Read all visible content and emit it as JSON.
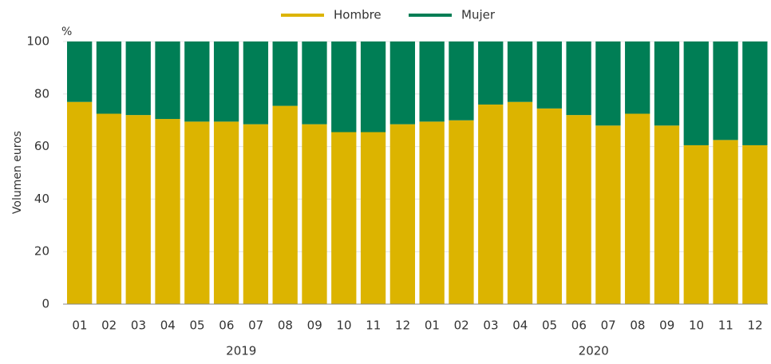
{
  "chart_data": {
    "type": "stacked_bar",
    "y_axis_label": "Volumen euros",
    "y_unit": "%",
    "categories": [
      "01",
      "02",
      "03",
      "04",
      "05",
      "06",
      "07",
      "08",
      "09",
      "10",
      "11",
      "12",
      "01",
      "02",
      "03",
      "04",
      "05",
      "06",
      "07",
      "08",
      "09",
      "10",
      "11",
      "12"
    ],
    "category_groups": [
      "2019",
      "2020"
    ],
    "series": [
      {
        "name": "Hombre",
        "color": "#dcb400",
        "values": [
          77,
          72.5,
          72,
          70.5,
          69.5,
          69.5,
          68.5,
          75.5,
          68.5,
          65.5,
          65.5,
          68.5,
          69.5,
          70,
          76,
          77,
          74.5,
          72,
          68,
          72.5,
          68,
          60.5,
          62.5,
          60.5
        ]
      },
      {
        "name": "Mujer",
        "color": "#007e55",
        "values": [
          23,
          27.5,
          28,
          29.5,
          30.5,
          30.5,
          31.5,
          24.5,
          31.5,
          34.5,
          34.5,
          31.5,
          30.5,
          30,
          24,
          23,
          25.5,
          28,
          32,
          27.5,
          32,
          39.5,
          37.5,
          39.5
        ]
      }
    ],
    "ylim": [
      0,
      100
    ],
    "yticks": [
      0,
      20,
      40,
      60,
      80,
      100
    ],
    "grid": true,
    "legend": "top"
  }
}
